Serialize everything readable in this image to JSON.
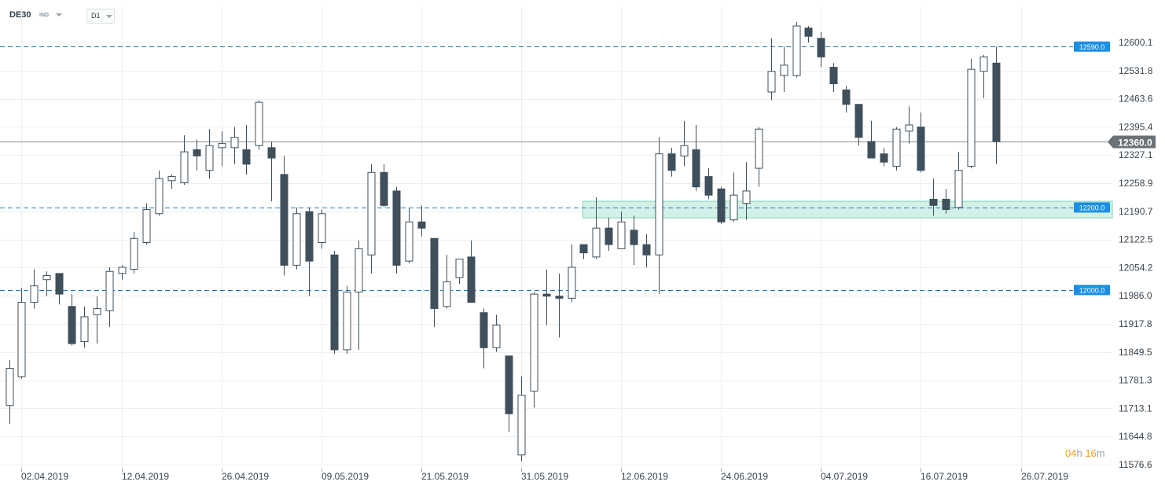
{
  "header": {
    "symbol": "DE30",
    "symbol_type": "IND",
    "timeframe": "D1"
  },
  "countdown": {
    "hours": "04",
    "h_unit": "h",
    "minutes": "16",
    "m_unit": "m"
  },
  "chart_data": {
    "type": "candlestick",
    "title": "",
    "ylim": [
      11560,
      12660
    ],
    "y_ticks": [
      "12600.1",
      "12531.8",
      "12463.6",
      "12395.4",
      "12327.1",
      "12258.9",
      "12190.7",
      "12122.5",
      "12054.2",
      "11986.0",
      "11917.8",
      "11849.5",
      "11781.3",
      "11713.1",
      "11644.8",
      "11576.6"
    ],
    "x_ticks": [
      {
        "label": "02.04.2019",
        "index": 1
      },
      {
        "label": "12.04.2019",
        "index": 9
      },
      {
        "label": "26.04.2019",
        "index": 17
      },
      {
        "label": "09.05.2019",
        "index": 25
      },
      {
        "label": "21.05.2019",
        "index": 33
      },
      {
        "label": "31.05.2019",
        "index": 41
      },
      {
        "label": "12.06.2019",
        "index": 49
      },
      {
        "label": "24.06.2019",
        "index": 57
      },
      {
        "label": "04.07.2019",
        "index": 65
      },
      {
        "label": "16.07.2019",
        "index": 73
      },
      {
        "label": "26.07.2019",
        "index": 81
      }
    ],
    "current_price": {
      "value": 12360.0,
      "label": "12360.0"
    },
    "levels": [
      {
        "value": 12590.0,
        "label": "12590.0"
      },
      {
        "value": 12200.0,
        "label": "12200.0"
      },
      {
        "value": 12000.0,
        "label": "12000.0"
      }
    ],
    "zone": {
      "from": 12175,
      "to": 12215,
      "start_index": 46
    },
    "colors": {
      "bull": "#ffffff",
      "bear": "#3f4f5b",
      "outline": "#3f4f5b",
      "level_line": "#1f7fb8",
      "level_badge": "#1a8fe3",
      "zone_fill": "#cdeee4",
      "zone_stroke": "#7fd1b8",
      "current_line": "#8c8f93",
      "current_badge": "#6b7277",
      "grid": "#eceef0",
      "axis_text": "#3a454e"
    },
    "candles": [
      {
        "o": 11720,
        "h": 11830,
        "l": 11675,
        "c": 11810
      },
      {
        "o": 11790,
        "h": 12005,
        "l": 11785,
        "c": 11970
      },
      {
        "o": 11970,
        "h": 12050,
        "l": 11955,
        "c": 12010
      },
      {
        "o": 12025,
        "h": 12045,
        "l": 11985,
        "c": 12035
      },
      {
        "o": 12040,
        "h": 12040,
        "l": 11965,
        "c": 11990
      },
      {
        "o": 11960,
        "h": 11990,
        "l": 11865,
        "c": 11870
      },
      {
        "o": 11875,
        "h": 11960,
        "l": 11860,
        "c": 11935
      },
      {
        "o": 11940,
        "h": 11985,
        "l": 11870,
        "c": 11955
      },
      {
        "o": 11950,
        "h": 12055,
        "l": 11910,
        "c": 12045
      },
      {
        "o": 12040,
        "h": 12060,
        "l": 12025,
        "c": 12055
      },
      {
        "o": 12050,
        "h": 12140,
        "l": 12040,
        "c": 12125
      },
      {
        "o": 12115,
        "h": 12210,
        "l": 12110,
        "c": 12195
      },
      {
        "o": 12185,
        "h": 12290,
        "l": 12180,
        "c": 12270
      },
      {
        "o": 12265,
        "h": 12280,
        "l": 12245,
        "c": 12275
      },
      {
        "o": 12260,
        "h": 12375,
        "l": 12255,
        "c": 12335
      },
      {
        "o": 12340,
        "h": 12365,
        "l": 12290,
        "c": 12325
      },
      {
        "o": 12290,
        "h": 12390,
        "l": 12270,
        "c": 12350
      },
      {
        "o": 12345,
        "h": 12385,
        "l": 12300,
        "c": 12355
      },
      {
        "o": 12345,
        "h": 12395,
        "l": 12305,
        "c": 12370
      },
      {
        "o": 12340,
        "h": 12400,
        "l": 12280,
        "c": 12305
      },
      {
        "o": 12350,
        "h": 12460,
        "l": 12340,
        "c": 12455
      },
      {
        "o": 12345,
        "h": 12360,
        "l": 12215,
        "c": 12320
      },
      {
        "o": 12280,
        "h": 12325,
        "l": 12035,
        "c": 12060
      },
      {
        "o": 12060,
        "h": 12200,
        "l": 12050,
        "c": 12185
      },
      {
        "o": 12190,
        "h": 12200,
        "l": 11985,
        "c": 12070
      },
      {
        "o": 12115,
        "h": 12195,
        "l": 12100,
        "c": 12185
      },
      {
        "o": 12085,
        "h": 12095,
        "l": 11845,
        "c": 11855
      },
      {
        "o": 11855,
        "h": 12010,
        "l": 11845,
        "c": 11995
      },
      {
        "o": 11995,
        "h": 12120,
        "l": 11855,
        "c": 12100
      },
      {
        "o": 12085,
        "h": 12305,
        "l": 12040,
        "c": 12285
      },
      {
        "o": 12285,
        "h": 12305,
        "l": 12200,
        "c": 12205
      },
      {
        "o": 12240,
        "h": 12250,
        "l": 12040,
        "c": 12060
      },
      {
        "o": 12070,
        "h": 12200,
        "l": 12065,
        "c": 12165
      },
      {
        "o": 12165,
        "h": 12205,
        "l": 12130,
        "c": 12150
      },
      {
        "o": 12125,
        "h": 12125,
        "l": 11910,
        "c": 11955
      },
      {
        "o": 11960,
        "h": 12085,
        "l": 11955,
        "c": 12020
      },
      {
        "o": 12030,
        "h": 12075,
        "l": 12015,
        "c": 12075
      },
      {
        "o": 12080,
        "h": 12120,
        "l": 11970,
        "c": 11970
      },
      {
        "o": 11945,
        "h": 11955,
        "l": 11810,
        "c": 11860
      },
      {
        "o": 11860,
        "h": 11940,
        "l": 11850,
        "c": 11915
      },
      {
        "o": 11840,
        "h": 11840,
        "l": 11655,
        "c": 11700
      },
      {
        "o": 11600,
        "h": 11790,
        "l": 11585,
        "c": 11745
      },
      {
        "o": 11755,
        "h": 11995,
        "l": 11715,
        "c": 11990
      },
      {
        "o": 11990,
        "h": 12050,
        "l": 11915,
        "c": 11985
      },
      {
        "o": 11985,
        "h": 12040,
        "l": 11885,
        "c": 11980
      },
      {
        "o": 11980,
        "h": 12110,
        "l": 11970,
        "c": 12055
      },
      {
        "o": 12110,
        "h": 12110,
        "l": 12075,
        "c": 12090
      },
      {
        "o": 12080,
        "h": 12225,
        "l": 12075,
        "c": 12150
      },
      {
        "o": 12150,
        "h": 12175,
        "l": 12095,
        "c": 12110
      },
      {
        "o": 12100,
        "h": 12190,
        "l": 12100,
        "c": 12165
      },
      {
        "o": 12145,
        "h": 12180,
        "l": 12060,
        "c": 12110
      },
      {
        "o": 12110,
        "h": 12135,
        "l": 12055,
        "c": 12085
      },
      {
        "o": 12085,
        "h": 12370,
        "l": 11990,
        "c": 12330
      },
      {
        "o": 12330,
        "h": 12345,
        "l": 12275,
        "c": 12290
      },
      {
        "o": 12325,
        "h": 12410,
        "l": 12300,
        "c": 12350
      },
      {
        "o": 12340,
        "h": 12400,
        "l": 12240,
        "c": 12250
      },
      {
        "o": 12275,
        "h": 12295,
        "l": 12220,
        "c": 12230
      },
      {
        "o": 12245,
        "h": 12250,
        "l": 12160,
        "c": 12165
      },
      {
        "o": 12170,
        "h": 12285,
        "l": 12165,
        "c": 12230
      },
      {
        "o": 12210,
        "h": 12310,
        "l": 12170,
        "c": 12240
      },
      {
        "o": 12295,
        "h": 12395,
        "l": 12250,
        "c": 12390
      },
      {
        "o": 12480,
        "h": 12610,
        "l": 12460,
        "c": 12530
      },
      {
        "o": 12520,
        "h": 12590,
        "l": 12480,
        "c": 12545
      },
      {
        "o": 12520,
        "h": 12650,
        "l": 12515,
        "c": 12640
      },
      {
        "o": 12635,
        "h": 12640,
        "l": 12600,
        "c": 12615
      },
      {
        "o": 12610,
        "h": 12625,
        "l": 12540,
        "c": 12565
      },
      {
        "o": 12540,
        "h": 12550,
        "l": 12480,
        "c": 12500
      },
      {
        "o": 12485,
        "h": 12495,
        "l": 12430,
        "c": 12450
      },
      {
        "o": 12450,
        "h": 12450,
        "l": 12350,
        "c": 12370
      },
      {
        "o": 12360,
        "h": 12410,
        "l": 12320,
        "c": 12320
      },
      {
        "o": 12330,
        "h": 12345,
        "l": 12300,
        "c": 12310
      },
      {
        "o": 12300,
        "h": 12395,
        "l": 12290,
        "c": 12390
      },
      {
        "o": 12385,
        "h": 12445,
        "l": 12355,
        "c": 12400
      },
      {
        "o": 12395,
        "h": 12430,
        "l": 12285,
        "c": 12290
      },
      {
        "o": 12220,
        "h": 12270,
        "l": 12180,
        "c": 12205
      },
      {
        "o": 12220,
        "h": 12245,
        "l": 12185,
        "c": 12195
      },
      {
        "o": 12200,
        "h": 12335,
        "l": 12195,
        "c": 12290
      },
      {
        "o": 12300,
        "h": 12560,
        "l": 12295,
        "c": 12535
      },
      {
        "o": 12530,
        "h": 12570,
        "l": 12465,
        "c": 12565
      },
      {
        "o": 12550,
        "h": 12590,
        "l": 12305,
        "c": 12360
      }
    ]
  }
}
